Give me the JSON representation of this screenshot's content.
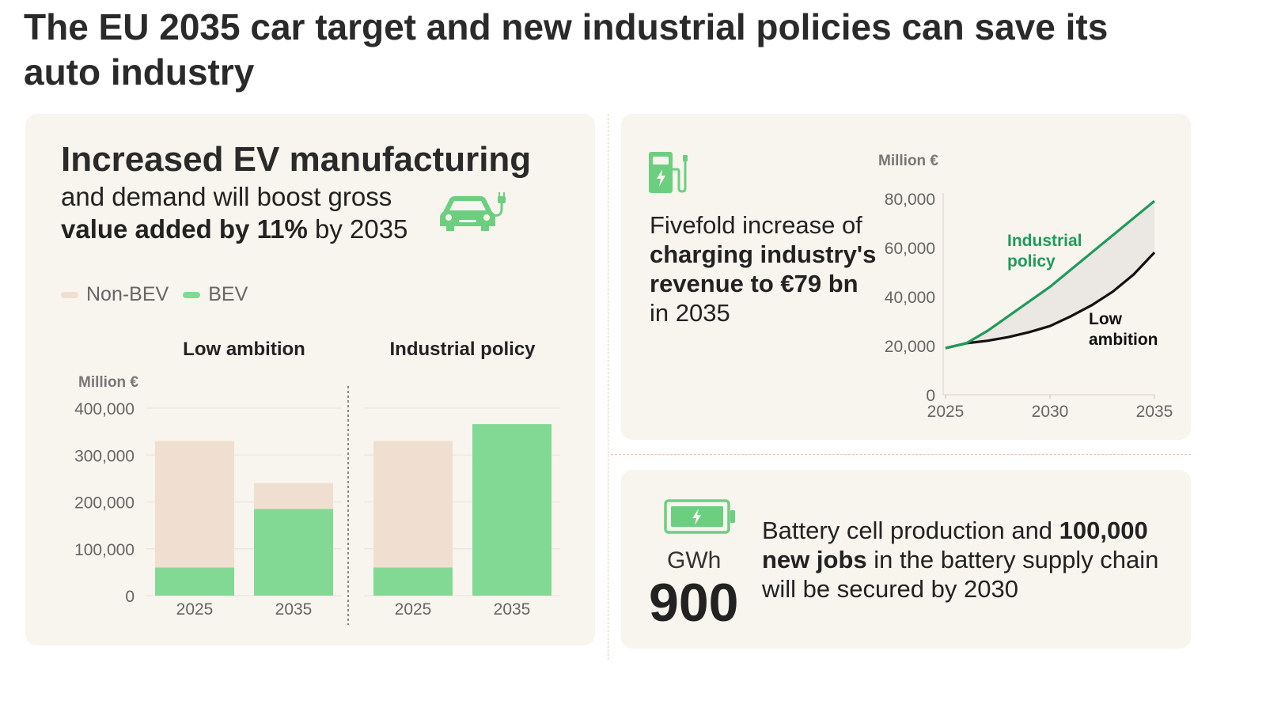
{
  "title": "The EU 2035 car target and new industrial policies can save its auto industry",
  "colors": {
    "non_bev": "#f0dfd0",
    "bev": "#82d993",
    "industrial_line": "#1f9a5b",
    "low_line": "#111111",
    "icon_green": "#6ccf80",
    "panel_bg": "#f8f4ee"
  },
  "left_panel": {
    "heading": "Increased EV manufacturing",
    "sub_pre": "and demand will boost gross",
    "sub_bold": "value added by 11%",
    "sub_post": " by 2035",
    "legend": [
      {
        "label": "Non-BEV",
        "icon": "legend-swatch-non-bev"
      },
      {
        "label": "BEV",
        "icon": "legend-swatch-bev"
      }
    ],
    "car_icon": "electric-car-icon"
  },
  "top_right_panel": {
    "icon": "charging-station-icon",
    "text_pre": "Fivefold increase of ",
    "text_bold": "charging industry's revenue to €79 bn",
    "text_post": " in 2035"
  },
  "bottom_right_panel": {
    "icon": "battery-icon",
    "unit": "GWh",
    "value": "900",
    "text_pre": "Battery cell production and ",
    "text_bold": "100,000 new jobs",
    "text_post": " in the battery supply chain will be secured by 2030"
  },
  "chart_data": [
    {
      "type": "bar",
      "stacked": true,
      "ylabel": "Million €",
      "ylim": [
        0,
        400000
      ],
      "yticks": [
        0,
        100000,
        200000,
        300000,
        400000
      ],
      "ytick_labels": [
        "0",
        "100,000",
        "200,000",
        "300,000",
        "400,000"
      ],
      "groups": [
        {
          "title": "Low ambition",
          "categories": [
            "2025",
            "2035"
          ],
          "bev": [
            60000,
            185000
          ],
          "non_bev": [
            270000,
            55000
          ]
        },
        {
          "title": "Industrial policy",
          "categories": [
            "2025",
            "2035"
          ],
          "bev": [
            60000,
            366000
          ],
          "non_bev": [
            270000,
            0
          ]
        }
      ],
      "legend": [
        "Non-BEV",
        "BEV"
      ],
      "grid": true
    },
    {
      "type": "line",
      "ylabel": "Million €",
      "xlim": [
        2025,
        2035
      ],
      "ylim": [
        0,
        80000
      ],
      "xticks": [
        2025,
        2030,
        2035
      ],
      "xtick_labels": [
        "2025",
        "2030",
        "2035"
      ],
      "yticks": [
        0,
        20000,
        40000,
        60000,
        80000
      ],
      "ytick_labels": [
        "0",
        "20,000",
        "40,000",
        "60,000",
        "80,000"
      ],
      "series": [
        {
          "name": "Industrial policy",
          "label_lines": [
            "Industrial",
            "policy"
          ],
          "x": [
            2025,
            2026,
            2027,
            2028,
            2029,
            2030,
            2031,
            2032,
            2033,
            2034,
            2035
          ],
          "values": [
            19000,
            21000,
            26000,
            32000,
            38000,
            44000,
            51000,
            58000,
            65000,
            72000,
            79000
          ]
        },
        {
          "name": "Low ambition",
          "label_lines": [
            "Low",
            "ambition"
          ],
          "x": [
            2025,
            2026,
            2027,
            2028,
            2029,
            2030,
            2031,
            2032,
            2033,
            2034,
            2035
          ],
          "values": [
            19000,
            21000,
            22000,
            23500,
            25500,
            28000,
            32000,
            36500,
            42000,
            49000,
            58000
          ]
        }
      ],
      "shaded_between": true,
      "grid": false
    }
  ]
}
